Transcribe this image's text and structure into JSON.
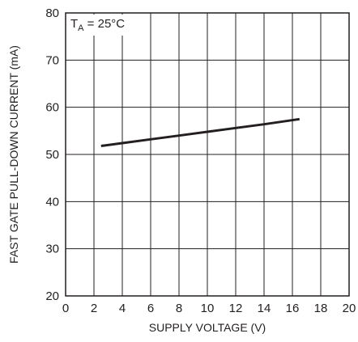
{
  "chart_data": {
    "type": "line",
    "xlabel": "SUPPLY VOLTAGE (V)",
    "ylabel": "FAST GATE PULL-DOWN CURRENT (mA)",
    "xlim": [
      0,
      20
    ],
    "ylim": [
      20,
      80
    ],
    "x_ticks": [
      "0",
      "2",
      "4",
      "6",
      "8",
      "10",
      "12",
      "14",
      "16",
      "18",
      "20"
    ],
    "y_ticks": [
      "20",
      "30",
      "40",
      "50",
      "60",
      "70",
      "80"
    ],
    "grid": true,
    "annotation": {
      "prefix": "T",
      "subscript": "A",
      "suffix": " = 25°C"
    },
    "series": [
      {
        "x": [
          2.5,
          4,
          6,
          8,
          10,
          12,
          14,
          16.5
        ],
        "y": [
          51.8,
          52.4,
          53.2,
          54.0,
          54.8,
          55.6,
          56.4,
          57.5
        ],
        "color": "#231f20"
      }
    ]
  }
}
